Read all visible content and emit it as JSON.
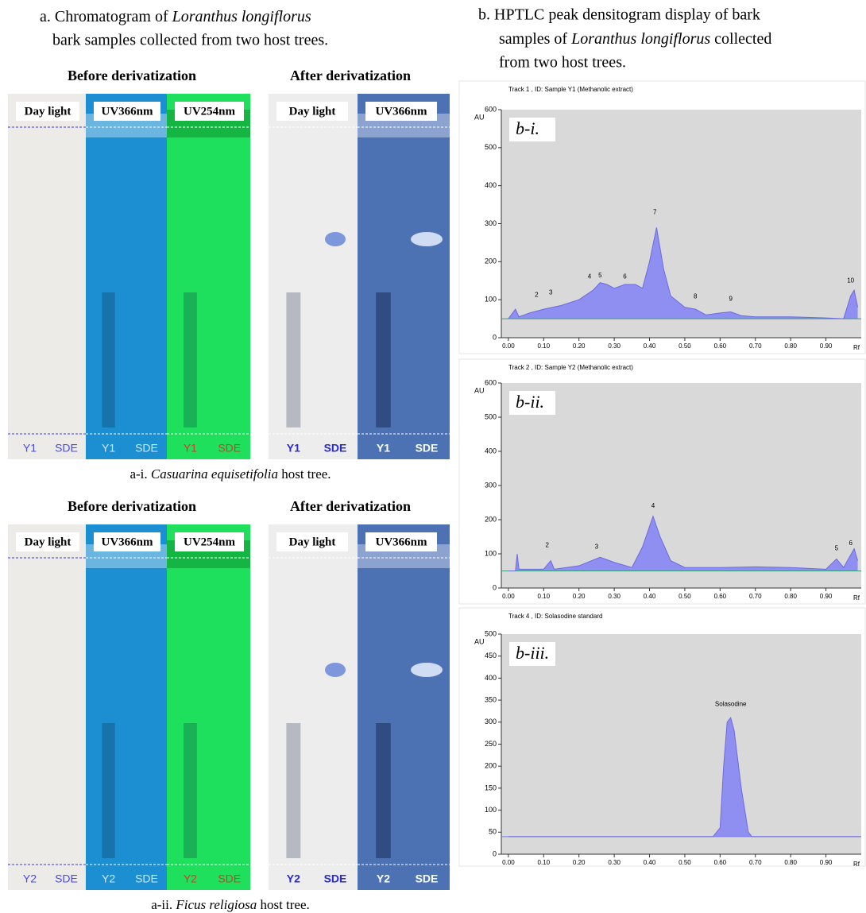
{
  "panel_a": {
    "title_prefix": "a. Chromatogram of ",
    "title_italic": "Loranthus longiflorus",
    "title_line2": "bark samples collected from two host trees.",
    "parts": [
      {
        "before": "Before derivatization",
        "after": "After derivatization",
        "strips": [
          {
            "label": "Day light",
            "lanes": [
              "Y1",
              "SDE"
            ]
          },
          {
            "label": "UV366nm",
            "lanes": [
              "Y1",
              "SDE"
            ]
          },
          {
            "label": "UV254nm",
            "lanes": [
              "Y1",
              "SDE"
            ]
          },
          {
            "label": "Day light",
            "lanes": [
              "Y1",
              "SDE"
            ]
          },
          {
            "label": "UV366nm",
            "lanes": [
              "Y1",
              "SDE"
            ]
          }
        ],
        "caption_prefix": "a-i. ",
        "caption_italic": "Casuarina equisetifolia",
        "caption_suffix": " host tree."
      },
      {
        "before": "Before derivatization",
        "after": "After derivatization",
        "strips": [
          {
            "label": "Day light",
            "lanes": [
              "Y2",
              "SDE"
            ]
          },
          {
            "label": "UV366nm",
            "lanes": [
              "Y2",
              "SDE"
            ]
          },
          {
            "label": "UV254nm",
            "lanes": [
              "Y2",
              "SDE"
            ]
          },
          {
            "label": "Day light",
            "lanes": [
              "Y2",
              "SDE"
            ]
          },
          {
            "label": "UV366nm",
            "lanes": [
              "Y2",
              "SDE"
            ]
          }
        ],
        "caption_prefix": "a-ii. ",
        "caption_italic": "Ficus religiosa",
        "caption_suffix": " host tree."
      }
    ]
  },
  "panel_b": {
    "title_line1": "b. HPTLC peak densitogram display of bark",
    "title_line2_prefix": "samples of ",
    "title_line2_italic": "Loranthus longiflorus",
    "title_line2_suffix": " collected",
    "title_line3": "from two host trees."
  },
  "chart_data": [
    {
      "type": "line",
      "title": "Track  1 , ID: Sample Y1 (Methanolic extract)",
      "panel_label": "b-i.",
      "ylabel": "AU",
      "xlabel": "Rf",
      "color": "#6b6be0",
      "fill": "#8f8ff2",
      "baseline": 50,
      "baseline_color": "#3a9a7a",
      "x": [
        0.0,
        0.02,
        0.03,
        0.06,
        0.1,
        0.15,
        0.2,
        0.24,
        0.26,
        0.28,
        0.3,
        0.33,
        0.36,
        0.38,
        0.4,
        0.42,
        0.44,
        0.46,
        0.5,
        0.53,
        0.56,
        0.6,
        0.63,
        0.66,
        0.7,
        0.8,
        0.9,
        0.95,
        0.97,
        0.98,
        0.99
      ],
      "values": [
        50,
        75,
        55,
        65,
        75,
        85,
        100,
        125,
        145,
        140,
        130,
        140,
        140,
        130,
        200,
        290,
        180,
        110,
        80,
        75,
        60,
        65,
        68,
        58,
        55,
        55,
        52,
        50,
        110,
        125,
        80
      ],
      "annotations": [
        {
          "text": "2",
          "x": 0.08,
          "y": 112
        },
        {
          "text": "3",
          "x": 0.12,
          "y": 118
        },
        {
          "text": "4",
          "x": 0.23,
          "y": 160
        },
        {
          "text": "5",
          "x": 0.26,
          "y": 163
        },
        {
          "text": "6",
          "x": 0.33,
          "y": 160
        },
        {
          "text": "7",
          "x": 0.415,
          "y": 330
        },
        {
          "text": "8",
          "x": 0.53,
          "y": 108
        },
        {
          "text": "9",
          "x": 0.63,
          "y": 102
        },
        {
          "text": "10",
          "x": 0.97,
          "y": 150
        }
      ],
      "xlim": [
        -0.02,
        1.0
      ],
      "ylim": [
        0,
        600
      ],
      "xticks": [
        {
          "value": 0,
          "label": "0.00"
        },
        {
          "value": 0.1,
          "label": "0.10"
        },
        {
          "value": 0.2,
          "label": "0.20"
        },
        {
          "value": 0.3,
          "label": "0.30"
        },
        {
          "value": 0.4,
          "label": "0.40"
        },
        {
          "value": 0.5,
          "label": "0.50"
        },
        {
          "value": 0.6,
          "label": "0.60"
        },
        {
          "value": 0.7,
          "label": "0.70"
        },
        {
          "value": 0.8,
          "label": "0.80"
        },
        {
          "value": 0.9,
          "label": "0.90"
        }
      ],
      "yticks": [
        0,
        100,
        200,
        300,
        400,
        500,
        600
      ]
    },
    {
      "type": "line",
      "title": "Track  2 , ID: Sample Y2 (Methanolic extract)",
      "panel_label": "b-ii.",
      "ylabel": "AU",
      "xlabel": "Rf",
      "color": "#6b6be0",
      "fill": "#8f8ff2",
      "baseline": 50,
      "baseline_color": "#3a9a7a",
      "x": [
        0.0,
        0.02,
        0.025,
        0.03,
        0.1,
        0.12,
        0.13,
        0.2,
        0.26,
        0.3,
        0.35,
        0.38,
        0.41,
        0.43,
        0.46,
        0.5,
        0.6,
        0.7,
        0.8,
        0.9,
        0.93,
        0.95,
        0.98,
        0.99
      ],
      "values": [
        50,
        50,
        100,
        55,
        55,
        80,
        55,
        65,
        90,
        75,
        60,
        120,
        210,
        150,
        80,
        60,
        60,
        62,
        60,
        55,
        85,
        60,
        115,
        80
      ],
      "annotations": [
        {
          "text": "2",
          "x": 0.11,
          "y": 125
        },
        {
          "text": "3",
          "x": 0.25,
          "y": 120
        },
        {
          "text": "4",
          "x": 0.41,
          "y": 240
        },
        {
          "text": "5",
          "x": 0.93,
          "y": 115
        },
        {
          "text": "6",
          "x": 0.97,
          "y": 130
        }
      ],
      "xlim": [
        -0.02,
        1.0
      ],
      "ylim": [
        0,
        600
      ],
      "xticks": [
        {
          "value": 0,
          "label": "0.00"
        },
        {
          "value": 0.1,
          "label": "0.10"
        },
        {
          "value": 0.2,
          "label": "0.20"
        },
        {
          "value": 0.3,
          "label": "0.30"
        },
        {
          "value": 0.4,
          "label": "0.40"
        },
        {
          "value": 0.5,
          "label": "0.50"
        },
        {
          "value": 0.6,
          "label": "0.60"
        },
        {
          "value": 0.7,
          "label": "0.70"
        },
        {
          "value": 0.8,
          "label": "0.80"
        },
        {
          "value": 0.9,
          "label": "0.90"
        }
      ],
      "yticks": [
        0,
        100,
        200,
        300,
        400,
        500,
        600
      ]
    },
    {
      "type": "line",
      "title": "Track  4 , ID: Solasodine standard",
      "panel_label": "b-iii.",
      "ylabel": "AU",
      "xlabel": "Rf",
      "color": "#6b6be0",
      "fill": "#8f8ff2",
      "baseline": 40,
      "baseline_color": "#7a7ae8",
      "x": [
        0.0,
        0.58,
        0.6,
        0.61,
        0.62,
        0.63,
        0.64,
        0.66,
        0.68,
        0.69,
        1.0
      ],
      "values": [
        40,
        40,
        60,
        200,
        300,
        310,
        280,
        150,
        50,
        40,
        40
      ],
      "annotations": [
        {
          "text": "Solasodine",
          "x": 0.63,
          "y": 340
        }
      ],
      "xlim": [
        -0.02,
        1.0
      ],
      "ylim": [
        0,
        500
      ],
      "xticks": [
        {
          "value": 0,
          "label": "0.00"
        },
        {
          "value": 0.1,
          "label": "0.10"
        },
        {
          "value": 0.2,
          "label": "0.20"
        },
        {
          "value": 0.3,
          "label": "0.30"
        },
        {
          "value": 0.4,
          "label": "0.40"
        },
        {
          "value": 0.5,
          "label": "0.50"
        },
        {
          "value": 0.6,
          "label": "0.60"
        },
        {
          "value": 0.7,
          "label": "0.70"
        },
        {
          "value": 0.8,
          "label": "0.80"
        },
        {
          "value": 0.9,
          "label": "0.90"
        }
      ],
      "yticks": [
        0,
        50,
        100,
        150,
        200,
        250,
        300,
        350,
        400,
        450,
        500
      ]
    }
  ]
}
